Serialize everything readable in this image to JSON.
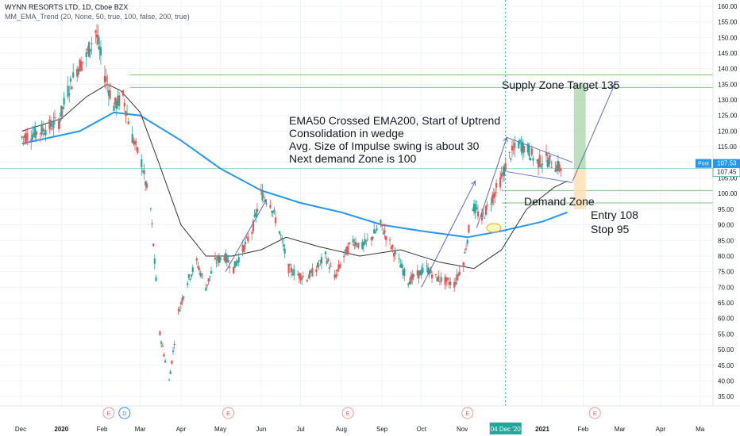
{
  "header": {
    "symbol_line": "WYNN RESORTS LTD, 1D, Cboe BZX",
    "indicator_line": "MM_EMA_Trend (20, None, 50, true, 100, false, 200, true)"
  },
  "colors": {
    "up": "#26a69a",
    "down": "#ef5350",
    "ema50": "#333333",
    "ema200": "#2196f3",
    "arrow": "#5c6bc0",
    "zone_line": "#4caf50",
    "target_fill": "#a5d6a7",
    "stop_fill": "#ffe0b2",
    "price_tag": "#2196f3",
    "date_tag": "#26a69a"
  },
  "annotations": {
    "main_lines": [
      "EMA50 Crossed EMA200, Start of Uptrend",
      "Consolidation in wedge",
      "Avg. Size of Impulse swing is about 30",
      "Next demand Zone is 100"
    ],
    "supply_zone": "Supply Zone  Target 135",
    "demand_zone": "Demand Zone",
    "entry": "Entry 108",
    "stop": "Stop 95"
  },
  "price_tags": {
    "post_label": "Post",
    "post_value": "107.53",
    "last_value": "107.45"
  },
  "crosshair_date": "04 Dec '20",
  "event_markers": [
    {
      "label": "E",
      "date": "2020-02-06"
    },
    {
      "label": "D",
      "date": "2020-02-18"
    },
    {
      "label": "E",
      "date": "2020-05-07"
    },
    {
      "label": "E",
      "date": "2020-08-06"
    },
    {
      "label": "E",
      "date": "2020-11-05"
    },
    {
      "label": "E",
      "date": "2021-02-10"
    }
  ],
  "chart_data": {
    "type": "candlestick",
    "y_axis": {
      "range": [
        32,
        162
      ],
      "ticks": [
        "160.00",
        "155.00",
        "150.00",
        "145.00",
        "140.00",
        "135.00",
        "130.00",
        "125.00",
        "120.00",
        "115.00",
        "110.00",
        "105.00",
        "100.00",
        "95.00",
        "90.00",
        "85.00",
        "80.00",
        "75.00",
        "70.00",
        "65.00",
        "60.00",
        "55.00",
        "50.00",
        "45.00",
        "40.00",
        "35.00"
      ]
    },
    "x_axis": {
      "range": [
        "2019-12-01",
        "2021-04-30"
      ],
      "ticks": [
        {
          "label": "Dec",
          "date": "2019-12-01"
        },
        {
          "label": "2020",
          "date": "2020-01-01"
        },
        {
          "label": "Feb",
          "date": "2020-02-01"
        },
        {
          "label": "Mar",
          "date": "2020-03-01"
        },
        {
          "label": "Apr",
          "date": "2020-04-01"
        },
        {
          "label": "May",
          "date": "2020-05-01"
        },
        {
          "label": "Jun",
          "date": "2020-06-01"
        },
        {
          "label": "Jul",
          "date": "2020-07-01"
        },
        {
          "label": "Aug",
          "date": "2020-08-01"
        },
        {
          "label": "Sep",
          "date": "2020-09-01"
        },
        {
          "label": "Oct",
          "date": "2020-10-01"
        },
        {
          "label": "Nov",
          "date": "2020-11-01"
        },
        {
          "label": "2021",
          "date": "2021-01-01"
        },
        {
          "label": "Feb",
          "date": "2021-02-01"
        },
        {
          "label": "Mar",
          "date": "2021-03-01"
        },
        {
          "label": "Apr",
          "date": "2021-04-01"
        },
        {
          "label": "Ma",
          "date": "2021-05-01"
        }
      ]
    },
    "series": [
      {
        "name": "price",
        "points": [
          [
            "2019-12-02",
            118
          ],
          [
            "2019-12-16",
            120
          ],
          [
            "2019-12-30",
            123
          ],
          [
            "2020-01-06",
            133
          ],
          [
            "2020-01-13",
            140
          ],
          [
            "2020-01-20",
            144
          ],
          [
            "2020-01-27",
            152
          ],
          [
            "2020-02-03",
            138
          ],
          [
            "2020-02-10",
            128
          ],
          [
            "2020-02-17",
            131
          ],
          [
            "2020-02-24",
            118
          ],
          [
            "2020-03-02",
            110
          ],
          [
            "2020-03-09",
            95
          ],
          [
            "2020-03-16",
            55
          ],
          [
            "2020-03-23",
            40
          ],
          [
            "2020-03-30",
            62
          ],
          [
            "2020-04-06",
            72
          ],
          [
            "2020-04-13",
            78
          ],
          [
            "2020-04-20",
            70
          ],
          [
            "2020-04-27",
            78
          ],
          [
            "2020-05-04",
            80
          ],
          [
            "2020-05-11",
            76
          ],
          [
            "2020-05-18",
            82
          ],
          [
            "2020-05-25",
            88
          ],
          [
            "2020-06-01",
            100
          ],
          [
            "2020-06-08",
            97
          ],
          [
            "2020-06-15",
            88
          ],
          [
            "2020-06-22",
            76
          ],
          [
            "2020-06-29",
            74
          ],
          [
            "2020-07-06",
            73
          ],
          [
            "2020-07-13",
            76
          ],
          [
            "2020-07-20",
            80
          ],
          [
            "2020-07-27",
            73
          ],
          [
            "2020-08-03",
            80
          ],
          [
            "2020-08-10",
            85
          ],
          [
            "2020-08-17",
            83
          ],
          [
            "2020-08-24",
            86
          ],
          [
            "2020-08-31",
            90
          ],
          [
            "2020-09-07",
            84
          ],
          [
            "2020-09-14",
            78
          ],
          [
            "2020-09-21",
            72
          ],
          [
            "2020-09-28",
            74
          ],
          [
            "2020-10-05",
            76
          ],
          [
            "2020-10-12",
            73
          ],
          [
            "2020-10-19",
            72
          ],
          [
            "2020-10-26",
            71
          ],
          [
            "2020-11-02",
            78
          ],
          [
            "2020-11-09",
            96
          ],
          [
            "2020-11-16",
            92
          ],
          [
            "2020-11-23",
            98
          ],
          [
            "2020-11-30",
            104
          ],
          [
            "2020-12-07",
            112
          ],
          [
            "2020-12-14",
            116
          ],
          [
            "2020-12-21",
            114
          ],
          [
            "2020-12-28",
            110
          ],
          [
            "2021-01-04",
            111
          ],
          [
            "2021-01-11",
            109
          ],
          [
            "2021-01-18",
            107.5
          ]
        ]
      },
      {
        "name": "EMA50",
        "points": [
          [
            "2019-12-02",
            120
          ],
          [
            "2020-01-01",
            124
          ],
          [
            "2020-01-20",
            131
          ],
          [
            "2020-02-05",
            135
          ],
          [
            "2020-02-15",
            133
          ],
          [
            "2020-03-01",
            126
          ],
          [
            "2020-03-15",
            110
          ],
          [
            "2020-04-01",
            90
          ],
          [
            "2020-04-20",
            80
          ],
          [
            "2020-05-10",
            80
          ],
          [
            "2020-06-01",
            82
          ],
          [
            "2020-06-20",
            86
          ],
          [
            "2020-07-15",
            83
          ],
          [
            "2020-08-15",
            80
          ],
          [
            "2020-09-15",
            82
          ],
          [
            "2020-10-15",
            78
          ],
          [
            "2020-11-10",
            76
          ],
          [
            "2020-12-01",
            82
          ],
          [
            "2020-12-20",
            95
          ],
          [
            "2021-01-10",
            102
          ],
          [
            "2021-01-20",
            104
          ]
        ]
      },
      {
        "name": "EMA200",
        "points": [
          [
            "2019-12-02",
            116
          ],
          [
            "2020-01-15",
            120
          ],
          [
            "2020-02-10",
            126
          ],
          [
            "2020-03-01",
            125
          ],
          [
            "2020-04-01",
            117
          ],
          [
            "2020-05-01",
            108
          ],
          [
            "2020-06-01",
            101
          ],
          [
            "2020-07-01",
            97
          ],
          [
            "2020-08-01",
            94
          ],
          [
            "2020-09-01",
            90
          ],
          [
            "2020-10-01",
            88
          ],
          [
            "2020-11-05",
            86
          ],
          [
            "2020-12-01",
            88
          ],
          [
            "2021-01-01",
            91
          ],
          [
            "2021-01-20",
            94
          ]
        ]
      }
    ],
    "levels": {
      "supply_zone": [
        134,
        138
      ],
      "demand_zone": [
        97,
        101
      ],
      "entry": 108,
      "stop": 95,
      "target": 135
    }
  }
}
